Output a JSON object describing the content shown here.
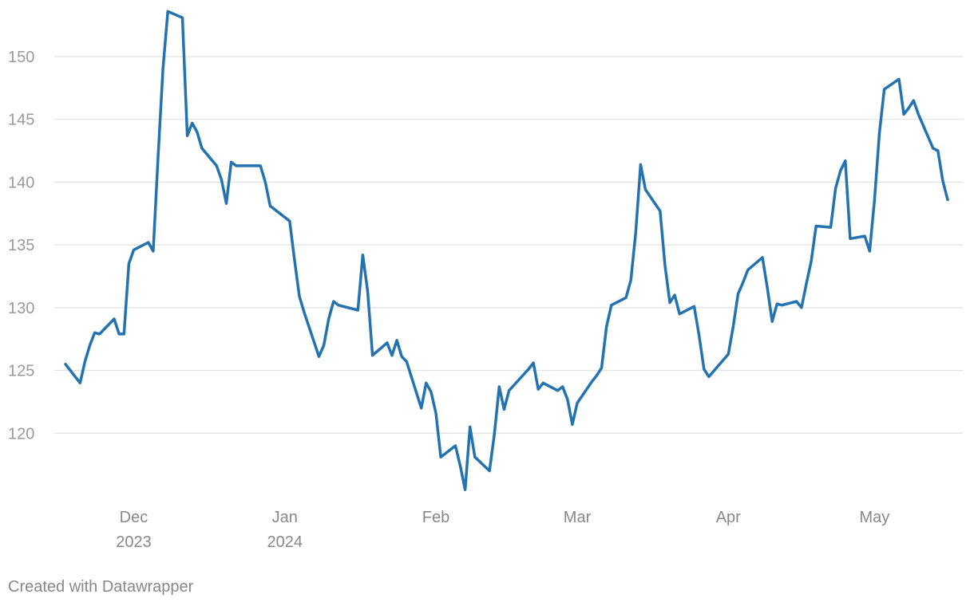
{
  "footer": {
    "credit": "Created with Datawrapper"
  },
  "colors": {
    "line": "#2472b0",
    "grid": "#e2e2e2",
    "tick_text": "#9a9a9a"
  },
  "chart_data": {
    "type": "line",
    "title": "",
    "xlabel": "",
    "ylabel": "",
    "grid": true,
    "ylim": [
      115,
      154
    ],
    "yticks": [
      120,
      125,
      130,
      135,
      140,
      145,
      150
    ],
    "xlim": [
      "2023-11-15",
      "2024-05-17"
    ],
    "xticks": [
      {
        "date": "2023-12-01",
        "label": "Dec",
        "sublabel": "2023"
      },
      {
        "date": "2024-01-01",
        "label": "Jan",
        "sublabel": "2024"
      },
      {
        "date": "2024-02-01",
        "label": "Feb",
        "sublabel": ""
      },
      {
        "date": "2024-03-01",
        "label": "Mar",
        "sublabel": ""
      },
      {
        "date": "2024-04-01",
        "label": "Apr",
        "sublabel": ""
      },
      {
        "date": "2024-05-01",
        "label": "May",
        "sublabel": ""
      }
    ],
    "series": [
      {
        "x": [
          "2023-11-17",
          "2023-11-20",
          "2023-11-21",
          "2023-11-22",
          "2023-11-23",
          "2023-11-24",
          "2023-11-27",
          "2023-11-28",
          "2023-11-29",
          "2023-11-30",
          "2023-12-01",
          "2023-12-04",
          "2023-12-05",
          "2023-12-06",
          "2023-12-07",
          "2023-12-08",
          "2023-12-11",
          "2023-12-12",
          "2023-12-13",
          "2023-12-14",
          "2023-12-15",
          "2023-12-18",
          "2023-12-19",
          "2023-12-20",
          "2023-12-21",
          "2023-12-22",
          "2023-12-26",
          "2023-12-27",
          "2023-12-28",
          "2023-12-29",
          "2024-01-02",
          "2024-01-03",
          "2024-01-04",
          "2024-01-05",
          "2024-01-08",
          "2024-01-09",
          "2024-01-10",
          "2024-01-11",
          "2024-01-12",
          "2024-01-16",
          "2024-01-17",
          "2024-01-18",
          "2024-01-19",
          "2024-01-22",
          "2024-01-23",
          "2024-01-24",
          "2024-01-25",
          "2024-01-26",
          "2024-01-29",
          "2024-01-30",
          "2024-01-31",
          "2024-02-01",
          "2024-02-02",
          "2024-02-05",
          "2024-02-06",
          "2024-02-07",
          "2024-02-08",
          "2024-02-09",
          "2024-02-12",
          "2024-02-13",
          "2024-02-14",
          "2024-02-15",
          "2024-02-16",
          "2024-02-20",
          "2024-02-21",
          "2024-02-22",
          "2024-02-23",
          "2024-02-26",
          "2024-02-27",
          "2024-02-28",
          "2024-02-29",
          "2024-03-01",
          "2024-03-04",
          "2024-03-05",
          "2024-03-06",
          "2024-03-07",
          "2024-03-08",
          "2024-03-11",
          "2024-03-12",
          "2024-03-13",
          "2024-03-14",
          "2024-03-15",
          "2024-03-18",
          "2024-03-19",
          "2024-03-20",
          "2024-03-21",
          "2024-03-22",
          "2024-03-25",
          "2024-03-26",
          "2024-03-27",
          "2024-03-28",
          "2024-04-01",
          "2024-04-02",
          "2024-04-03",
          "2024-04-04",
          "2024-04-05",
          "2024-04-08",
          "2024-04-09",
          "2024-04-10",
          "2024-04-11",
          "2024-04-12",
          "2024-04-15",
          "2024-04-16",
          "2024-04-17",
          "2024-04-18",
          "2024-04-19",
          "2024-04-22",
          "2024-04-23",
          "2024-04-24",
          "2024-04-25",
          "2024-04-26",
          "2024-04-29",
          "2024-04-30",
          "2024-05-01",
          "2024-05-02",
          "2024-05-03",
          "2024-05-06",
          "2024-05-07",
          "2024-05-08",
          "2024-05-09",
          "2024-05-10",
          "2024-05-13",
          "2024-05-14",
          "2024-05-15",
          "2024-05-16"
        ],
        "y": [
          125.5,
          124.0,
          125.7,
          127.0,
          128.0,
          127.9,
          129.1,
          127.9,
          127.9,
          133.5,
          134.6,
          135.2,
          134.5,
          142.0,
          149.0,
          153.6,
          153.1,
          143.7,
          144.7,
          144.0,
          142.7,
          141.3,
          140.2,
          138.3,
          141.6,
          141.3,
          141.3,
          141.3,
          140.0,
          138.1,
          136.9,
          133.8,
          130.9,
          129.6,
          126.1,
          127.0,
          129.1,
          130.5,
          130.2,
          129.8,
          134.2,
          131.3,
          126.2,
          127.2,
          126.2,
          127.4,
          126.1,
          125.7,
          122.0,
          124.0,
          123.3,
          121.6,
          118.1,
          119.0,
          117.4,
          115.5,
          120.5,
          118.1,
          117.0,
          119.9,
          123.7,
          121.9,
          123.4,
          125.1,
          125.6,
          123.5,
          124.0,
          123.4,
          123.7,
          122.7,
          120.7,
          122.4,
          124.1,
          124.6,
          125.2,
          128.5,
          130.2,
          130.8,
          132.2,
          136.0,
          141.4,
          139.4,
          137.7,
          133.4,
          130.4,
          131.0,
          129.5,
          130.1,
          127.8,
          125.1,
          124.5,
          126.3,
          128.5,
          131.1,
          132.0,
          133.0,
          134.0,
          131.6,
          128.9,
          130.3,
          130.2,
          130.5,
          130.0,
          131.9,
          133.7,
          136.5,
          136.4,
          139.5,
          140.9,
          141.7,
          135.5,
          135.7,
          134.5,
          138.6,
          143.9,
          147.4,
          148.2,
          145.4,
          145.9,
          146.5,
          145.4,
          142.7,
          142.5,
          140.1,
          138.6
        ]
      }
    ]
  }
}
